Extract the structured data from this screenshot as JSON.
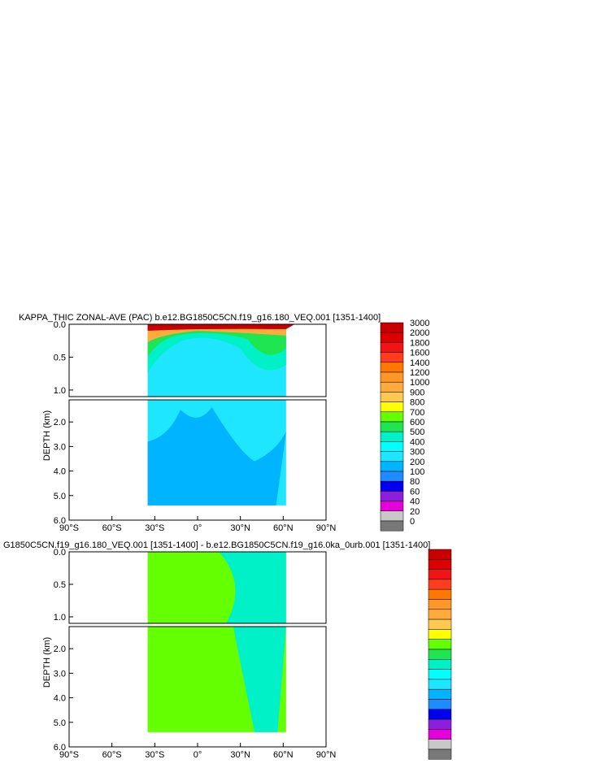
{
  "chart_data": [
    {
      "type": "contour",
      "title": "KAPPA_THIC ZONAL-AVE (PAC) b.e12.BG1850C5CN.f19_g16.180_VEQ.001 [1351-1400]",
      "xlabel": "",
      "ylabel": "DEPTH (km)",
      "x_ticks": [
        "90°S",
        "60°S",
        "30°S",
        "0°",
        "30°N",
        "60°N",
        "90°N"
      ],
      "y_ticks_upper": [
        "0.0",
        "0.5",
        "1.0"
      ],
      "y_ticks_lower": [
        "2.0",
        "3.0",
        "4.0",
        "5.0",
        "6.0"
      ],
      "xlim": [
        -90,
        90
      ],
      "ylim_upper": [
        0,
        1.1
      ],
      "ylim_lower": [
        1.1,
        6.0
      ],
      "colorbar_labels": [
        "3000",
        "2000",
        "1800",
        "1600",
        "1400",
        "1200",
        "1000",
        "900",
        "800",
        "700",
        "600",
        "500",
        "400",
        "300",
        "200",
        "100",
        "80",
        "60",
        "40",
        "20",
        "0"
      ]
    },
    {
      "type": "contour",
      "title": "G1850C5CN.f19_g16.180_VEQ.001 [1351-1400] - b.e12.BG1850C5CN.f19_g16.0ka_0urb.001 [1351-1400]",
      "xlabel": "",
      "ylabel": "DEPTH (km)",
      "x_ticks": [
        "90°S",
        "60°S",
        "30°S",
        "0°",
        "30°N",
        "60°N",
        "90°N"
      ],
      "y_ticks_upper": [
        "0.0",
        "0.5",
        "1.0"
      ],
      "y_ticks_lower": [
        "2.0",
        "3.0",
        "4.0",
        "5.0",
        "6.0"
      ],
      "xlim": [
        -90,
        90
      ],
      "ylim_upper": [
        0,
        1.1
      ],
      "ylim_lower": [
        1.1,
        6.0
      ]
    }
  ],
  "colors": {
    "colorbar": [
      "#c80000",
      "#dc0000",
      "#f01414",
      "#ff3c1e",
      "#ff7800",
      "#ff9628",
      "#ffaa3c",
      "#ffc850",
      "#ffff00",
      "#64ff00",
      "#1ee650",
      "#00f0c8",
      "#00ffff",
      "#1ee6ff",
      "#00b4ff",
      "#1e8cff",
      "#0000f0",
      "#8c1edc",
      "#e600dc",
      "#c8c8c8",
      "#787878"
    ],
    "deep": "#00b4ff",
    "mid": "#1ee6ff",
    "anomaly": "#64ff00"
  }
}
